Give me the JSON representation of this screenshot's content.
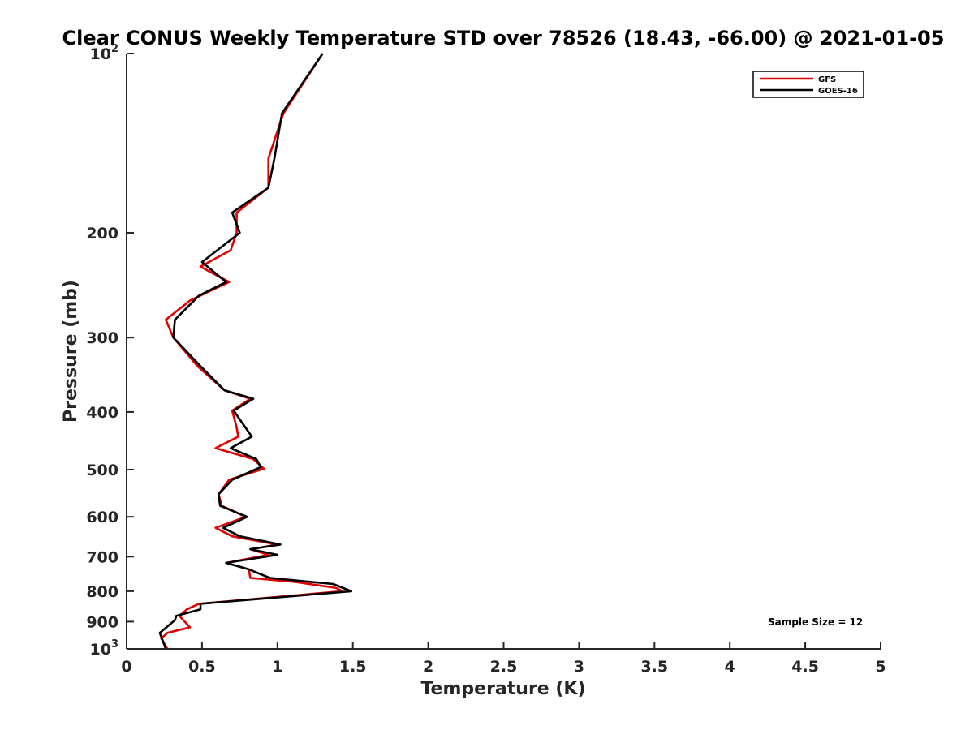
{
  "chart_data": {
    "type": "line",
    "title": "Clear CONUS Weekly Temperature STD over 78526 (18.43, -66.00) @ 2021-01-05",
    "xlabel": "Temperature (K)",
    "ylabel": "Pressure (mb)",
    "xlim": [
      0,
      5
    ],
    "ylim": [
      100,
      1000
    ],
    "y_scale": "log",
    "y_reversed": true,
    "x_ticks": [
      0,
      0.5,
      1,
      1.5,
      2,
      2.5,
      3,
      3.5,
      4,
      4.5,
      5
    ],
    "x_tick_labels": [
      "0",
      "0.5",
      "1",
      "1.5",
      "2",
      "2.5",
      "3",
      "3.5",
      "4",
      "4.5",
      "5"
    ],
    "y_ticks": [
      100,
      200,
      300,
      400,
      500,
      600,
      700,
      800,
      900,
      1000
    ],
    "y_tick_labels": [
      {
        "base": "10",
        "sup": "2"
      },
      {
        "base": "200",
        "sup": ""
      },
      {
        "base": "300",
        "sup": ""
      },
      {
        "base": "400",
        "sup": ""
      },
      {
        "base": "500",
        "sup": ""
      },
      {
        "base": "600",
        "sup": ""
      },
      {
        "base": "700",
        "sup": ""
      },
      {
        "base": "800",
        "sup": ""
      },
      {
        "base": "900",
        "sup": ""
      },
      {
        "base": "10",
        "sup": "3"
      }
    ],
    "grid": false,
    "legend_position": "top-right",
    "annotation": "Sample Size = 12",
    "series": [
      {
        "name": "GFS",
        "color": "#e00000",
        "points": [
          [
            1.3,
            100
          ],
          [
            1.04,
            126
          ],
          [
            0.94,
            150
          ],
          [
            0.94,
            168
          ],
          [
            0.73,
            185
          ],
          [
            0.73,
            200
          ],
          [
            0.69,
            214
          ],
          [
            0.49,
            228
          ],
          [
            0.68,
            242
          ],
          [
            0.56,
            250
          ],
          [
            0.42,
            260
          ],
          [
            0.26,
            280
          ],
          [
            0.31,
            300
          ],
          [
            0.47,
            335
          ],
          [
            0.65,
            368
          ],
          [
            0.82,
            380
          ],
          [
            0.7,
            398
          ],
          [
            0.73,
            425
          ],
          [
            0.74,
            440
          ],
          [
            0.59,
            460
          ],
          [
            0.84,
            480
          ],
          [
            0.91,
            498
          ],
          [
            0.68,
            520
          ],
          [
            0.61,
            550
          ],
          [
            0.63,
            575
          ],
          [
            0.79,
            600
          ],
          [
            0.59,
            626
          ],
          [
            0.7,
            647
          ],
          [
            1.0,
            668
          ],
          [
            0.82,
            680
          ],
          [
            0.94,
            695
          ],
          [
            0.66,
            717
          ],
          [
            0.81,
            735
          ],
          [
            0.82,
            760
          ],
          [
            1.12,
            772
          ],
          [
            1.39,
            790
          ],
          [
            1.43,
            800
          ],
          [
            0.48,
            840
          ],
          [
            0.4,
            858
          ],
          [
            0.35,
            880
          ],
          [
            0.42,
            920
          ],
          [
            0.27,
            940
          ],
          [
            0.23,
            960
          ],
          [
            0.27,
            1000
          ]
        ]
      },
      {
        "name": "GOES-16",
        "color": "#000000",
        "points": [
          [
            1.3,
            100
          ],
          [
            1.03,
            126
          ],
          [
            0.98,
            150
          ],
          [
            0.94,
            168
          ],
          [
            0.7,
            185
          ],
          [
            0.75,
            200
          ],
          [
            0.5,
            224
          ],
          [
            0.66,
            242
          ],
          [
            0.48,
            255
          ],
          [
            0.32,
            280
          ],
          [
            0.31,
            300
          ],
          [
            0.49,
            335
          ],
          [
            0.65,
            368
          ],
          [
            0.84,
            380
          ],
          [
            0.71,
            398
          ],
          [
            0.83,
            440
          ],
          [
            0.69,
            460
          ],
          [
            0.86,
            480
          ],
          [
            0.89,
            495
          ],
          [
            0.7,
            520
          ],
          [
            0.61,
            550
          ],
          [
            0.62,
            575
          ],
          [
            0.8,
            600
          ],
          [
            0.64,
            626
          ],
          [
            0.75,
            647
          ],
          [
            1.02,
            668
          ],
          [
            0.82,
            680
          ],
          [
            1.0,
            695
          ],
          [
            0.66,
            717
          ],
          [
            0.81,
            735
          ],
          [
            0.95,
            760
          ],
          [
            1.37,
            778
          ],
          [
            1.49,
            800
          ],
          [
            0.49,
            840
          ],
          [
            0.49,
            858
          ],
          [
            0.33,
            880
          ],
          [
            0.32,
            895
          ],
          [
            0.22,
            940
          ],
          [
            0.26,
            1000
          ]
        ]
      }
    ]
  }
}
